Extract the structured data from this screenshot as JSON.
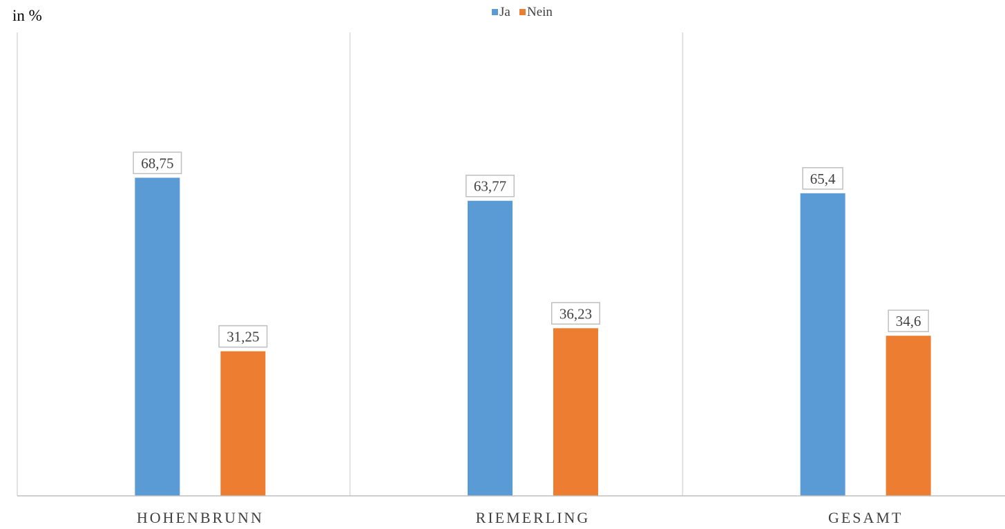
{
  "chart_data": {
    "type": "bar",
    "title": "",
    "xlabel": "",
    "ylabel": "in %",
    "categories": [
      "HOHENBRUNN",
      "RIEMERLING",
      "GESAMT"
    ],
    "series": [
      {
        "name": "Ja",
        "values": [
          68.75,
          63.77,
          65.4
        ],
        "labels": [
          "68,75",
          "63,77",
          "65,4"
        ],
        "color": "#5b9bd5"
      },
      {
        "name": "Nein",
        "values": [
          31.25,
          36.23,
          34.6
        ],
        "labels": [
          "31,25",
          "36,23",
          "34,6"
        ],
        "color": "#ed7d31"
      }
    ],
    "ylim": [
      0,
      100
    ],
    "grid": false,
    "legend_position": "top-center",
    "data_labels": true
  }
}
